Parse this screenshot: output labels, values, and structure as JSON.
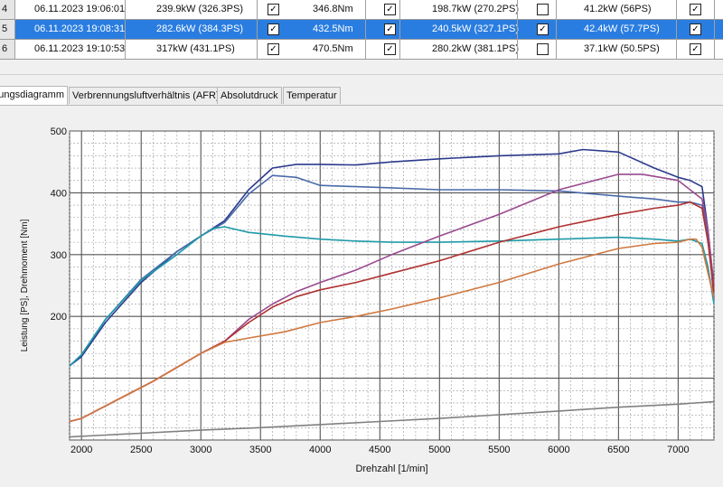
{
  "table": {
    "rows": [
      {
        "index": "4",
        "datetime": "06.11.2023 19:06:01",
        "power": "239.9kW (326.3PS)",
        "c1": true,
        "torque": "346.8Nm",
        "c2": true,
        "wheel": "198.7kW (270.2PS)",
        "c3": false,
        "loss": "41.2kW (56PS)",
        "c4": true,
        "selected": false
      },
      {
        "index": "5",
        "datetime": "06.11.2023 19:08:31",
        "power": "282.6kW (384.3PS)",
        "c1": true,
        "torque": "432.5Nm",
        "c2": true,
        "wheel": "240.5kW (327.1PS)",
        "c3": true,
        "loss": "42.4kW (57.7PS)",
        "c4": true,
        "selected": true
      },
      {
        "index": "6",
        "datetime": "06.11.2023 19:10:53",
        "power": "317kW (431.1PS)",
        "c1": true,
        "torque": "470.5Nm",
        "c2": true,
        "wheel": "280.2kW (381.1PS)",
        "c3": false,
        "loss": "37.1kW (50.5PS)",
        "c4": true,
        "selected": false
      }
    ]
  },
  "tabs": [
    {
      "label": "Leistungsdiagramm",
      "active": true
    },
    {
      "label": "Verbrennungsluftverhältnis (AFR)",
      "active": false
    },
    {
      "label": "Absolutdruck",
      "active": false
    },
    {
      "label": "Temperatur",
      "active": false
    }
  ],
  "chart_data": {
    "type": "line",
    "xlabel": "Drehzahl [1/min]",
    "ylabel": "Leistung [PS], Drehmoment [Nm]",
    "xlim": [
      1900,
      7300
    ],
    "ylim": [
      0,
      500
    ],
    "x_ticks": [
      2000,
      2500,
      3000,
      3500,
      4000,
      4500,
      5000,
      5500,
      6000,
      6500,
      7000
    ],
    "y_ticks": [
      200,
      300,
      400,
      500
    ],
    "grid": true,
    "series": [
      {
        "color": "#2c3a8c",
        "x": [
          1900,
          2000,
          2200,
          2500,
          2800,
          3000,
          3200,
          3400,
          3600,
          3800,
          4000,
          4300,
          4600,
          5000,
          5500,
          6000,
          6200,
          6500,
          6800,
          7000,
          7100,
          7200,
          7250,
          7300
        ],
        "y": [
          120,
          135,
          190,
          255,
          305,
          330,
          355,
          405,
          440,
          446,
          446,
          445,
          450,
          455,
          460,
          463,
          470,
          466,
          440,
          425,
          420,
          410,
          340,
          230
        ]
      },
      {
        "color": "#4a6aa8",
        "x": [
          1900,
          2000,
          2200,
          2500,
          2800,
          3000,
          3200,
          3400,
          3600,
          3800,
          4000,
          4300,
          4600,
          5000,
          5500,
          6000,
          6300,
          6600,
          6800,
          7000,
          7100,
          7200,
          7250,
          7300
        ],
        "y": [
          120,
          138,
          195,
          260,
          305,
          330,
          352,
          398,
          428,
          425,
          412,
          410,
          408,
          405,
          405,
          403,
          398,
          393,
          390,
          385,
          385,
          380,
          330,
          230
        ]
      },
      {
        "color": "#1e9aa8",
        "x": [
          1900,
          2000,
          2200,
          2500,
          2800,
          3000,
          3100,
          3200,
          3400,
          3700,
          4000,
          4300,
          4600,
          5000,
          5500,
          6000,
          6500,
          6800,
          7000,
          7100,
          7200,
          7250,
          7300
        ],
        "y": [
          120,
          138,
          195,
          258,
          300,
          330,
          342,
          345,
          336,
          330,
          325,
          322,
          320,
          320,
          322,
          325,
          328,
          325,
          322,
          325,
          318,
          280,
          220
        ]
      },
      {
        "color": "#9a4a90",
        "x": [
          1900,
          2000,
          2300,
          2600,
          3000,
          3200,
          3400,
          3600,
          3800,
          4000,
          4300,
          4600,
          5000,
          5500,
          6000,
          6500,
          6700,
          7000,
          7100,
          7200,
          7250,
          7300
        ],
        "y": [
          30,
          35,
          65,
          95,
          140,
          160,
          195,
          220,
          240,
          255,
          275,
          300,
          330,
          365,
          405,
          430,
          430,
          420,
          405,
          390,
          340,
          250
        ]
      },
      {
        "color": "#b03030",
        "x": [
          1900,
          2000,
          2300,
          2600,
          3000,
          3200,
          3400,
          3600,
          3800,
          4000,
          4300,
          4600,
          5000,
          5500,
          6000,
          6500,
          6800,
          7000,
          7100,
          7200,
          7250,
          7300
        ],
        "y": [
          30,
          35,
          65,
          95,
          140,
          160,
          190,
          215,
          232,
          243,
          255,
          270,
          290,
          320,
          345,
          365,
          375,
          380,
          385,
          375,
          320,
          240
        ]
      },
      {
        "color": "#d07840",
        "x": [
          1900,
          2000,
          2300,
          2600,
          3000,
          3200,
          3400,
          3700,
          4000,
          4300,
          4600,
          5000,
          5500,
          6000,
          6500,
          6800,
          7000,
          7100,
          7150,
          7200,
          7250,
          7300
        ],
        "y": [
          30,
          35,
          65,
          95,
          140,
          158,
          165,
          175,
          190,
          200,
          212,
          230,
          255,
          285,
          310,
          318,
          320,
          325,
          325,
          312,
          270,
          230
        ]
      },
      {
        "color": "#808080",
        "x": [
          1900,
          2200,
          2500,
          3000,
          3500,
          4000,
          4500,
          5000,
          5500,
          6000,
          6500,
          7000,
          7300
        ],
        "y": [
          5,
          8,
          11,
          16,
          20,
          25,
          30,
          35,
          41,
          47,
          53,
          58,
          62
        ]
      }
    ]
  }
}
